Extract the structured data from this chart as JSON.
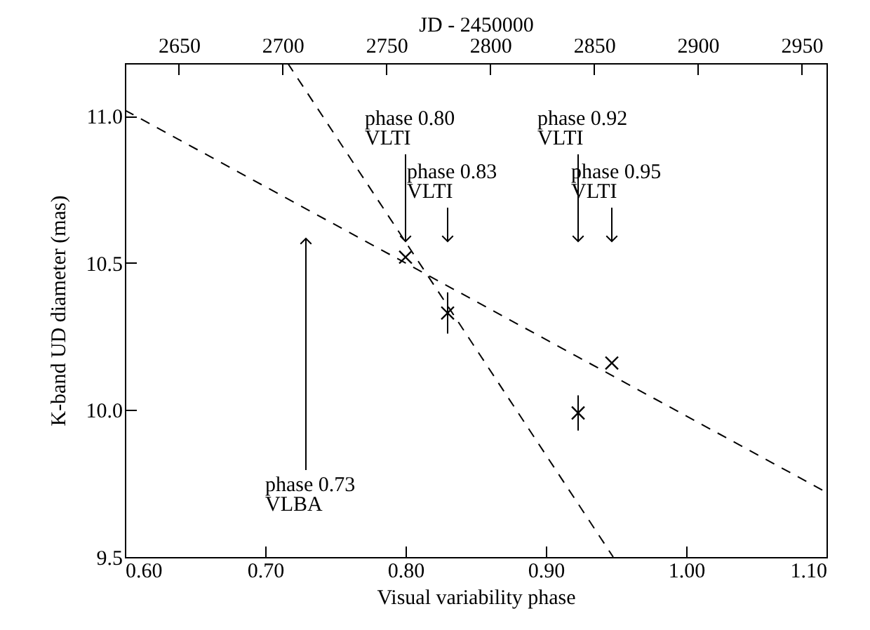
{
  "chart_data": {
    "type": "scatter",
    "xlabel": "Visual variability phase",
    "ylabel": "K-band UD diameter (mas)",
    "x2label": "JD - 2450000",
    "x": [
      0.8,
      0.83,
      0.923,
      0.947
    ],
    "series": [
      {
        "type": "scatter",
        "color": "#000000",
        "marker": "cross",
        "values": [
          10.52,
          10.33,
          9.99,
          10.16
        ],
        "errors": [
          null,
          0.07,
          0.06,
          null
        ]
      },
      {
        "type": "line",
        "color": "#000000",
        "line_style": "dashed",
        "marker": "none",
        "x": [
          0.6,
          1.1
        ],
        "values": [
          11.02,
          9.72
        ]
      },
      {
        "type": "line",
        "color": "#000000",
        "line_style": "dashed",
        "marker": "none",
        "x": [
          0.716,
          0.948
        ],
        "values": [
          11.18,
          9.5
        ]
      }
    ],
    "xlim": [
      0.6,
      1.1
    ],
    "xticks": [
      {
        "value": 0.6,
        "label": "0.60"
      },
      {
        "value": 0.7,
        "label": "0.70"
      },
      {
        "value": 0.8,
        "label": "0.80"
      },
      {
        "value": 0.9,
        "label": "0.90"
      },
      {
        "value": 1.0,
        "label": "1.00"
      },
      {
        "value": 1.1,
        "label": "1.10"
      }
    ],
    "ylim": [
      9.5,
      11.18
    ],
    "yticks": [
      {
        "value": 9.5,
        "label": "9.5"
      },
      {
        "value": 10,
        "label": "10.0"
      },
      {
        "value": 10.5,
        "label": "10.5"
      },
      {
        "value": 11,
        "label": "11.0"
      }
    ],
    "x2lim": [
      2624,
      2962
    ],
    "x2ticks": [
      2650,
      2700,
      2750,
      2800,
      2850,
      2900,
      2950
    ],
    "annotations": [
      {
        "text": "phase 0.80\nVLTI",
        "x": 0.8
      },
      {
        "text": "phase 0.83\nVLTI",
        "x": 0.83
      },
      {
        "text": "phase 0.92\nVLTI",
        "x": 0.923
      },
      {
        "text": "phase 0.95\nVLTI",
        "x": 0.947
      },
      "phase 0.73\nVLBA"
    ],
    "grid": false
  }
}
